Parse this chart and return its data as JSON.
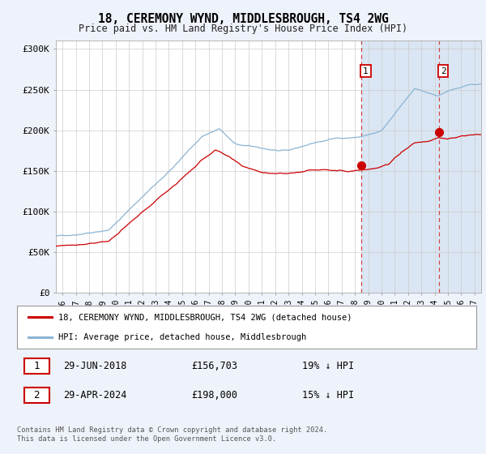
{
  "title": "18, CEREMONY WYND, MIDDLESBROUGH, TS4 2WG",
  "subtitle": "Price paid vs. HM Land Registry's House Price Index (HPI)",
  "ylim": [
    0,
    310000
  ],
  "yticks": [
    0,
    50000,
    100000,
    150000,
    200000,
    250000,
    300000
  ],
  "ytick_labels": [
    "£0",
    "£50K",
    "£100K",
    "£150K",
    "£200K",
    "£250K",
    "£300K"
  ],
  "xmin_year": 1995.5,
  "xmax_year": 2027.5,
  "xticks": [
    1996,
    1997,
    1998,
    1999,
    2000,
    2001,
    2002,
    2003,
    2004,
    2005,
    2006,
    2007,
    2008,
    2009,
    2010,
    2011,
    2012,
    2013,
    2014,
    2015,
    2016,
    2017,
    2018,
    2019,
    2020,
    2021,
    2022,
    2023,
    2024,
    2025,
    2026,
    2027
  ],
  "hpi_color": "#8ab4d4",
  "price_color": "#cc0000",
  "marker1_year": 2018.5,
  "marker1_value": 156703,
  "marker2_year": 2024.33,
  "marker2_value": 198000,
  "marker1_date": "29-JUN-2018",
  "marker1_price": "£156,703",
  "marker1_hpi_txt": "19% ↓ HPI",
  "marker2_date": "29-APR-2024",
  "marker2_price": "£198,000",
  "marker2_hpi_txt": "15% ↓ HPI",
  "legend_entry1": "18, CEREMONY WYND, MIDDLESBROUGH, TS4 2WG (detached house)",
  "legend_entry2": "HPI: Average price, detached house, Middlesbrough",
  "footer": "Contains HM Land Registry data © Crown copyright and database right 2024.\nThis data is licensed under the Open Government Licence v3.0.",
  "bg_color": "#eef2fa",
  "plot_bg": "#ffffff",
  "shade_color": "#dae6f3",
  "hatch_color": "#c8d8e8"
}
